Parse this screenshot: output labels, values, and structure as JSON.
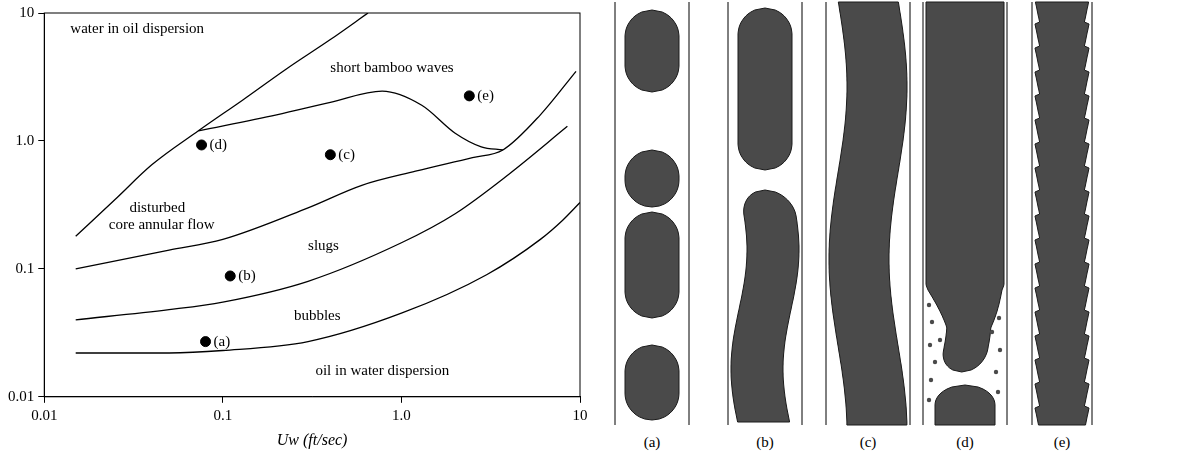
{
  "chart_data": {
    "type": "line",
    "x_label": "Uw (ft/sec)",
    "log": true,
    "grid": false,
    "xlim": [
      0.01,
      10
    ],
    "ylim": [
      0.01,
      10
    ],
    "xticks": [
      0.01,
      0.1,
      {
        "value": 1,
        "label": "1.0"
      },
      10
    ],
    "yticks": [
      0.01,
      0.1,
      {
        "value": 1,
        "label": "1.0"
      },
      10
    ],
    "series": [
      {
        "type": "line",
        "color": "#000000",
        "line_style": "solid",
        "x": [
          0.015,
          0.025,
          0.04,
          0.073,
          0.13,
          0.23,
          0.4,
          0.65
        ],
        "values": [
          0.18,
          0.35,
          0.65,
          1.2,
          2.1,
          3.7,
          6.2,
          10
        ]
      },
      {
        "type": "line",
        "color": "#000000",
        "line_style": "solid",
        "x": [
          0.073,
          0.2,
          0.4,
          0.78,
          1.3,
          2.0,
          2.8,
          3.7
        ],
        "values": [
          1.2,
          1.6,
          2.0,
          2.45,
          1.9,
          1.15,
          0.9,
          0.85
        ]
      },
      {
        "type": "line",
        "color": "#000000",
        "line_style": "solid",
        "x": [
          0.015,
          0.05,
          0.1,
          0.3,
          0.6,
          1.2,
          2.5,
          3.7,
          6,
          9.5
        ],
        "values": [
          0.1,
          0.14,
          0.17,
          0.3,
          0.45,
          0.58,
          0.74,
          0.85,
          1.6,
          3.5
        ]
      },
      {
        "type": "line",
        "color": "#000000",
        "line_style": "solid",
        "x": [
          0.015,
          0.05,
          0.1,
          0.3,
          1,
          2,
          4,
          8.5
        ],
        "values": [
          0.04,
          0.048,
          0.055,
          0.08,
          0.16,
          0.27,
          0.55,
          1.3
        ]
      },
      {
        "type": "line",
        "color": "#000000",
        "line_style": "solid",
        "x": [
          0.015,
          0.05,
          0.1,
          0.3,
          1,
          3,
          6,
          8,
          10
        ],
        "values": [
          0.022,
          0.022,
          0.023,
          0.027,
          0.045,
          0.09,
          0.17,
          0.24,
          0.33
        ]
      },
      {
        "type": "scatter",
        "color": "#000000",
        "marker": "circle",
        "x": [
          0.08,
          0.11,
          0.4,
          0.076,
          2.4
        ],
        "values": [
          0.027,
          0.088,
          0.78,
          0.93,
          2.25
        ],
        "point_labels": [
          "(a)",
          "(b)",
          "(c)",
          "(d)",
          "(e)"
        ]
      }
    ],
    "annotations": [
      {
        "text": "water in oil dispersion",
        "x": 0.014,
        "y": 7.5
      },
      {
        "text": "short bamboo waves",
        "x": 0.4,
        "y": 3.7
      },
      {
        "text": "disturbed",
        "x": 0.03,
        "y": 0.3
      },
      {
        "text": "core annular flow",
        "x": 0.023,
        "y": 0.22
      },
      {
        "text": "slugs",
        "x": 0.3,
        "y": 0.15
      },
      {
        "text": "bubbles",
        "x": 0.25,
        "y": 0.043
      },
      {
        "text": "oil in water dispersion",
        "x": 0.33,
        "y": 0.016
      }
    ]
  },
  "schematics": {
    "labels": [
      "(a)",
      "(b)",
      "(c)",
      "(d)",
      "(e)"
    ]
  }
}
